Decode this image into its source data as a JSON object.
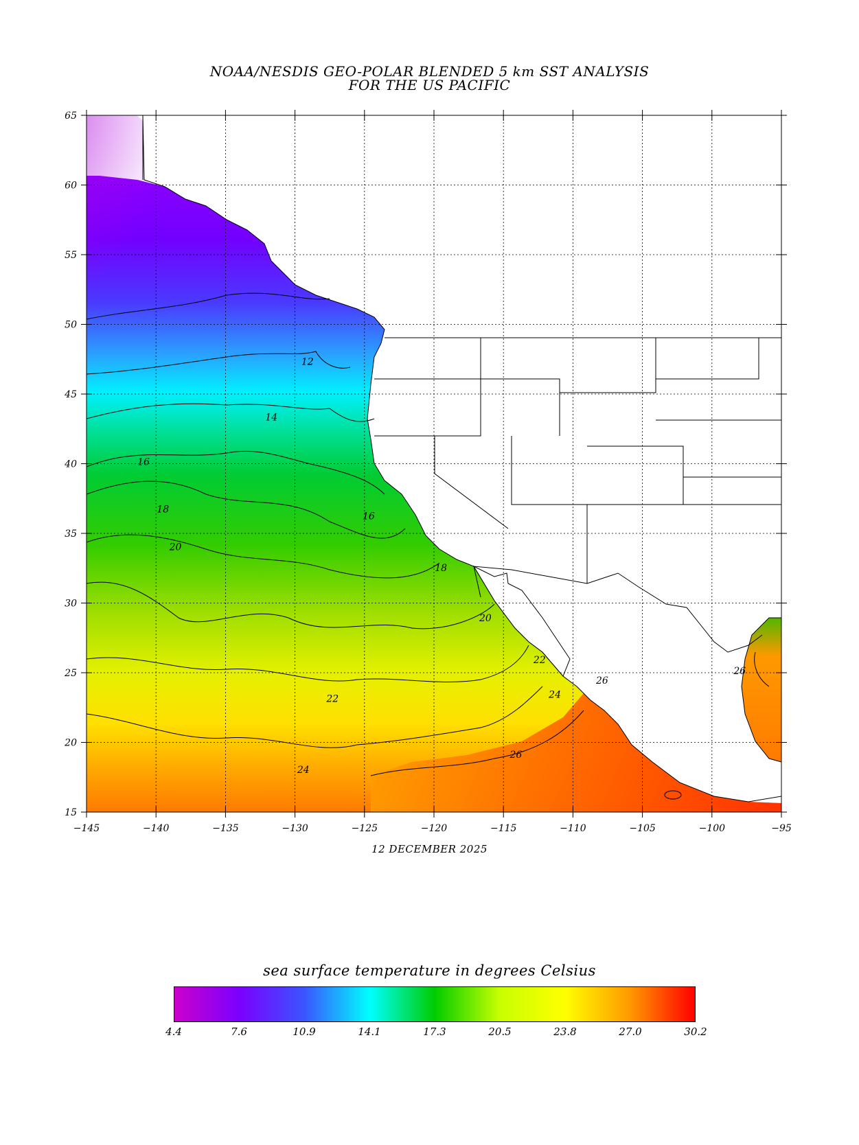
{
  "title": {
    "line1": "NOAA/NESDIS GEO-POLAR BLENDED 5 km SST ANALYSIS",
    "line2": "FOR THE US PACIFIC"
  },
  "date": "12 DECEMBER 2025",
  "axes": {
    "lon_ticks": [
      "−145",
      "−140",
      "−135",
      "−130",
      "−125",
      "−120",
      "−115",
      "−110",
      "−105",
      "−100",
      "−95"
    ],
    "lat_ticks": [
      "65",
      "60",
      "55",
      "50",
      "45",
      "40",
      "35",
      "30",
      "25",
      "20",
      "15"
    ],
    "lon_range": [
      -145,
      -95
    ],
    "lat_range": [
      15,
      65
    ]
  },
  "contours": [
    {
      "label": "12",
      "lon": -129.1,
      "lat": 47.1
    },
    {
      "label": "14",
      "lon": -131.7,
      "lat": 43.1
    },
    {
      "label": "16",
      "lon": -140.9,
      "lat": 39.9
    },
    {
      "label": "16",
      "lon": -124.7,
      "lat": 36.0
    },
    {
      "label": "18",
      "lon": -139.5,
      "lat": 36.5
    },
    {
      "label": "18",
      "lon": -119.5,
      "lat": 32.3
    },
    {
      "label": "20",
      "lon": -138.6,
      "lat": 33.8
    },
    {
      "label": "20",
      "lon": -116.3,
      "lat": 28.7
    },
    {
      "label": "22",
      "lon": -127.3,
      "lat": 22.9
    },
    {
      "label": "22",
      "lon": -112.4,
      "lat": 25.7
    },
    {
      "label": "24",
      "lon": -129.4,
      "lat": 17.8
    },
    {
      "label": "24",
      "lon": -111.3,
      "lat": 23.2
    },
    {
      "label": "26",
      "lon": -114.1,
      "lat": 18.9
    },
    {
      "label": "26",
      "lon": -107.9,
      "lat": 24.2
    },
    {
      "label": "26",
      "lon": -98.0,
      "lat": 24.9
    }
  ],
  "colorbar": {
    "title": "sea surface temperature in degrees Celsius",
    "labels": [
      "4.4",
      "7.6",
      "10.9",
      "14.1",
      "17.3",
      "20.5",
      "23.8",
      "27.0",
      "30.2"
    ],
    "colors": [
      "#cc00cc",
      "#7a00ff",
      "#3a55ff",
      "#00ffff",
      "#00cc00",
      "#c8ff00",
      "#ffff00",
      "#ff9900",
      "#ff0000"
    ]
  }
}
